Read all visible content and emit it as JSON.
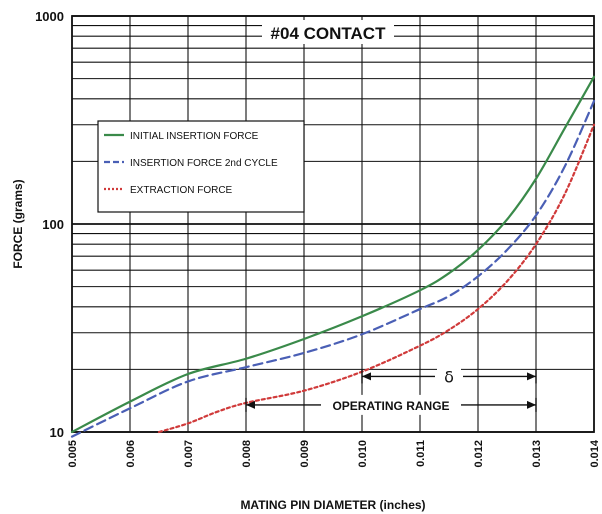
{
  "chart_data": {
    "type": "line",
    "title": "#04 CONTACT",
    "xlabel": "MATING PIN  DIAMETER (inches)",
    "ylabel": "FORCE (grams)",
    "x_scale": "linear",
    "y_scale": "log",
    "xlim": [
      0.005,
      0.014
    ],
    "ylim": [
      10,
      1000
    ],
    "x_ticks": [
      "0.005",
      "0.006",
      "0.007",
      "0.008",
      "0.009",
      "0.010",
      "0.011",
      "0.012",
      "0.013",
      "0.014"
    ],
    "y_ticks": [
      "10",
      "100",
      "1000"
    ],
    "grid": true,
    "legend_position": "upper-left",
    "series": [
      {
        "name": "INITIAL INSERTION FORCE",
        "color": "#3a8a4a",
        "style": "solid",
        "x": [
          0.005,
          0.006,
          0.007,
          0.008,
          0.009,
          0.01,
          0.011,
          0.0115,
          0.012,
          0.0125,
          0.013,
          0.0135,
          0.014
        ],
        "y": [
          10,
          14,
          19,
          22.5,
          28,
          36,
          48,
          58,
          75,
          105,
          165,
          290,
          510
        ]
      },
      {
        "name": "INSERTION FORCE 2nd CYCLE",
        "color": "#4a5fb5",
        "style": "dashed",
        "x": [
          0.005,
          0.006,
          0.007,
          0.008,
          0.009,
          0.01,
          0.011,
          0.0115,
          0.012,
          0.0125,
          0.013,
          0.0135,
          0.014
        ],
        "y": [
          9.5,
          13,
          17.5,
          20.5,
          24,
          29.5,
          39,
          45,
          56,
          75,
          110,
          190,
          390
        ]
      },
      {
        "name": "EXTRACTION FORCE",
        "color": "#d03a3a",
        "style": "dotted",
        "x": [
          0.0065,
          0.007,
          0.0075,
          0.008,
          0.009,
          0.01,
          0.011,
          0.0115,
          0.012,
          0.0125,
          0.013,
          0.0135,
          0.014
        ],
        "y": [
          10,
          11,
          12.5,
          13.8,
          15.8,
          19.5,
          26,
          31,
          39,
          53,
          80,
          140,
          300
        ]
      }
    ],
    "annotations": [
      {
        "label": "δ",
        "x_start": 0.01,
        "x_end": 0.013,
        "y": 18.5
      },
      {
        "label": "OPERATING RANGE",
        "x_start": 0.008,
        "x_end": 0.013,
        "y": 13.5
      }
    ]
  }
}
